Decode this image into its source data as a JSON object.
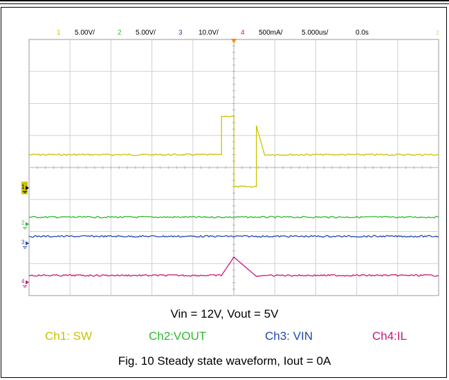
{
  "chart_data": {
    "type": "line",
    "title": "",
    "xlabel": "",
    "ylabel": "",
    "grid": true,
    "divisions": {
      "x": 10,
      "y": 8
    },
    "scope_header": {
      "ch1": {
        "num": "1",
        "scale": "5.00V/"
      },
      "ch2": {
        "num": "2",
        "scale": "5.00V/"
      },
      "ch3": {
        "num": "3",
        "scale": "10.0V/"
      },
      "ch4": {
        "num": "4",
        "scale": "500mA/"
      },
      "timebase": "5.000us/",
      "delay": "0.0s",
      "end_marker": "z"
    },
    "series": [
      {
        "name": "Ch1: SW",
        "color": "#c9c200",
        "marker": "1",
        "points": [
          [
            0,
            4.4
          ],
          [
            4.7,
            4.4
          ],
          [
            4.7,
            5.6
          ],
          [
            5.0,
            5.6
          ],
          [
            5.0,
            3.4
          ],
          [
            5.55,
            3.4
          ],
          [
            5.55,
            5.3
          ],
          [
            5.75,
            4.4
          ],
          [
            10,
            4.4
          ]
        ]
      },
      {
        "name": "Ch2:VOUT",
        "color": "#2db82d",
        "marker": "2",
        "points": [
          [
            0,
            2.45
          ],
          [
            10,
            2.45
          ]
        ]
      },
      {
        "name": "Ch3: VIN",
        "color": "#2047b0",
        "marker": "3",
        "points": [
          [
            0,
            1.85
          ],
          [
            10,
            1.85
          ]
        ]
      },
      {
        "name": "Ch4:IL",
        "color": "#c8167a",
        "marker": "4",
        "points": [
          [
            0,
            0.63
          ],
          [
            4.7,
            0.63
          ],
          [
            5.0,
            1.2
          ],
          [
            5.55,
            0.6
          ],
          [
            5.75,
            0.63
          ],
          [
            10,
            0.63
          ]
        ]
      }
    ]
  },
  "conditions": "Vin = 12V, Vout = 5V",
  "figure_caption": "Fig. 10    Steady state waveform, Iout = 0A"
}
